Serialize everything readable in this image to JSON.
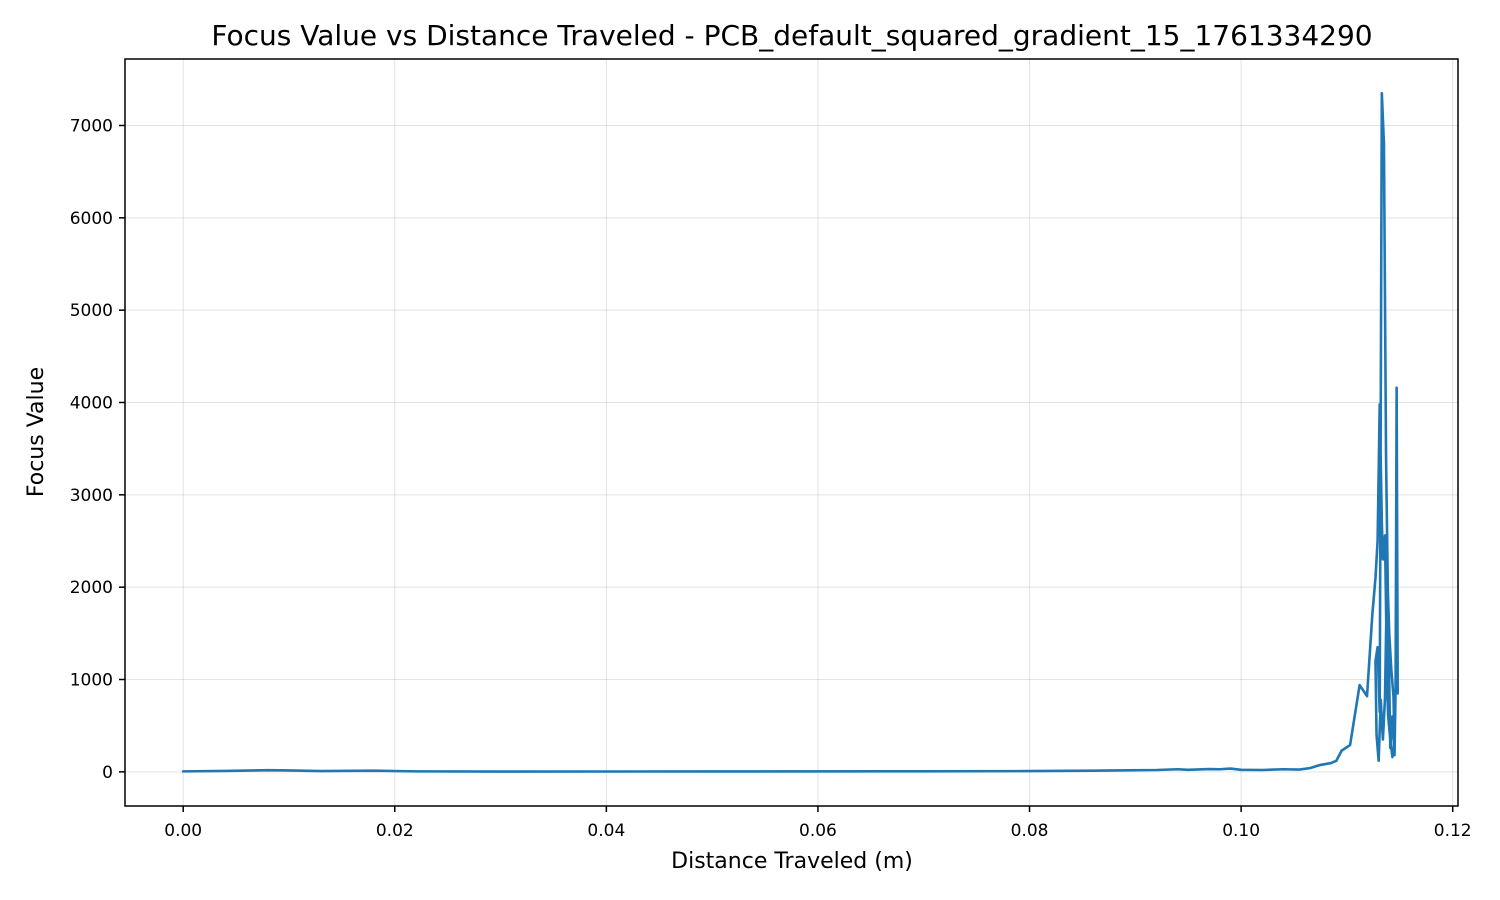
{
  "chart_data": {
    "type": "line",
    "title": "Focus Value vs Distance Traveled - PCB_default_squared_gradient_15_1761334290",
    "xlabel": "Distance Traveled (m)",
    "ylabel": "Focus Value",
    "xlim": [
      -0.0055,
      0.1205
    ],
    "ylim": [
      -370,
      7720
    ],
    "xticks": [
      0.0,
      0.02,
      0.04,
      0.06,
      0.08,
      0.1,
      0.12
    ],
    "xtick_labels": [
      "0.00",
      "0.02",
      "0.04",
      "0.06",
      "0.08",
      "0.10",
      "0.12"
    ],
    "yticks": [
      0,
      1000,
      2000,
      3000,
      4000,
      5000,
      6000,
      7000
    ],
    "ytick_labels": [
      "0",
      "1000",
      "2000",
      "3000",
      "4000",
      "5000",
      "6000",
      "7000"
    ],
    "grid": true,
    "legend": "none",
    "series": [
      {
        "color": "#1f77b4",
        "x": [
          0.0,
          0.004,
          0.008,
          0.01,
          0.013,
          0.018,
          0.022,
          0.03,
          0.05,
          0.07,
          0.08,
          0.086,
          0.088,
          0.092,
          0.094,
          0.095,
          0.097,
          0.098,
          0.099,
          0.1,
          0.102,
          0.104,
          0.1055,
          0.1065,
          0.1075,
          0.1085,
          0.109,
          0.1095,
          0.1103,
          0.1112,
          0.1119,
          0.1124,
          0.1127,
          0.1129,
          0.1131,
          0.1133,
          0.1134,
          0.1136,
          0.1138,
          0.1139,
          0.1141,
          0.1143,
          0.1145,
          0.1144,
          0.1142,
          0.114,
          0.1138,
          0.1136,
          0.1134,
          0.1132,
          0.113,
          0.1128,
          0.1127,
          0.1129,
          0.1131,
          0.1133,
          0.1135,
          0.1137,
          0.1139,
          0.1141,
          0.1143,
          0.1145,
          0.1146,
          0.1147,
          0.1148
        ],
        "y": [
          5,
          10,
          18,
          15,
          8,
          12,
          5,
          3,
          4,
          6,
          8,
          12,
          15,
          20,
          28,
          22,
          30,
          28,
          35,
          22,
          20,
          28,
          25,
          40,
          75,
          95,
          120,
          230,
          290,
          940,
          820,
          1700,
          2100,
          2500,
          3980,
          2700,
          2300,
          2560,
          950,
          600,
          350,
          160,
          300,
          820,
          1100,
          1500,
          2200,
          800,
          350,
          780,
          120,
          400,
          1200,
          1350,
          650,
          7350,
          6800,
          3400,
          1700,
          260,
          600,
          180,
          900,
          4160,
          850
        ]
      }
    ]
  }
}
